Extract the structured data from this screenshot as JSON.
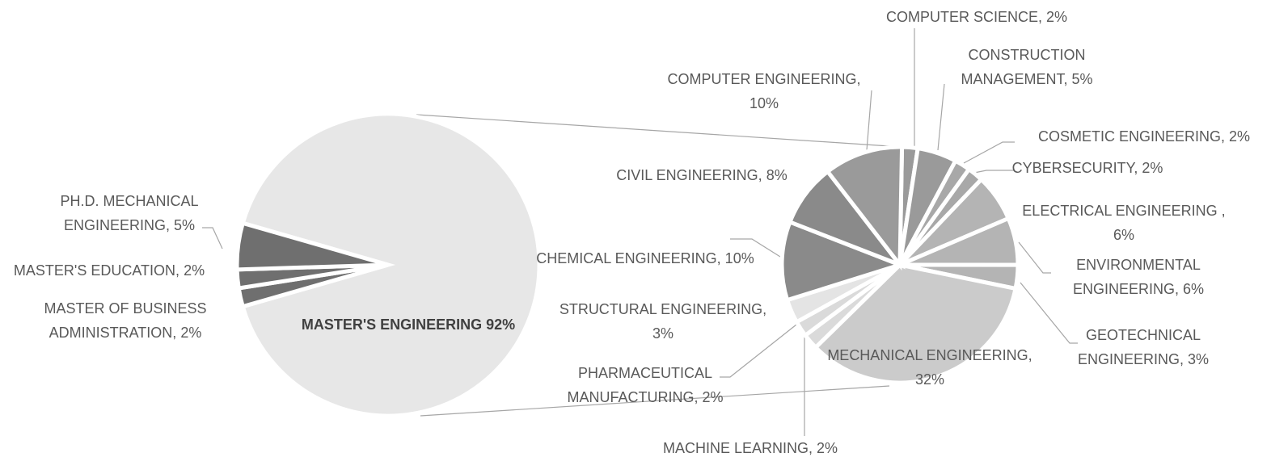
{
  "chart_data": [
    {
      "type": "pie",
      "categories": [
        "MASTER'S ENGINEERING",
        "MASTER OF BUSINESS ADMINISTRATION,",
        "MASTER'S EDUCATION,",
        "PH.D. MECHANICAL ENGINEERING,"
      ],
      "values": [
        92,
        2,
        2,
        5
      ],
      "value_labels": [
        "92%",
        "2%",
        "2%",
        "5%"
      ],
      "colors": [
        "#e7e7e7",
        "#6f6f6f",
        "#6f6f6f",
        "#6f6f6f"
      ]
    },
    {
      "type": "pie",
      "categories": [
        "COMPUTER SCIENCE,",
        "CONSTRUCTION MANAGEMENT,",
        "COSMETIC ENGINEERING,",
        "CYBERSECURITY,",
        "ELECTRICAL ENGINEERING ,",
        "ENVIRONMENTAL ENGINEERING,",
        "GEOTECHNICAL ENGINEERING,",
        "MECHANICAL ENGINEERING,",
        "MACHINE LEARNING,",
        "PHARMACEUTICAL MANUFACTURING,",
        "STRUCTURAL ENGINEERING,",
        "CHEMICAL ENGINEERING,",
        "CIVIL ENGINEERING,",
        "COMPUTER ENGINEERING,"
      ],
      "values": [
        2,
        5,
        2,
        2,
        6,
        6,
        3,
        32,
        2,
        2,
        3,
        10,
        8,
        10
      ],
      "value_labels": [
        "2%",
        "5%",
        "2%",
        "2%",
        "6%",
        "6%",
        "3%",
        "32%",
        "2%",
        "2%",
        "3%",
        "10%",
        "8%",
        "10%"
      ],
      "colors": [
        "#9a9a9a",
        "#9a9a9a",
        "#a8a8a8",
        "#a8a8a8",
        "#b4b4b4",
        "#b4b4b4",
        "#b4b4b4",
        "#cbcbcb",
        "#dadada",
        "#dadada",
        "#e4e4e4",
        "#8a8a8a",
        "#8a8a8a",
        "#9a9a9a"
      ]
    }
  ]
}
